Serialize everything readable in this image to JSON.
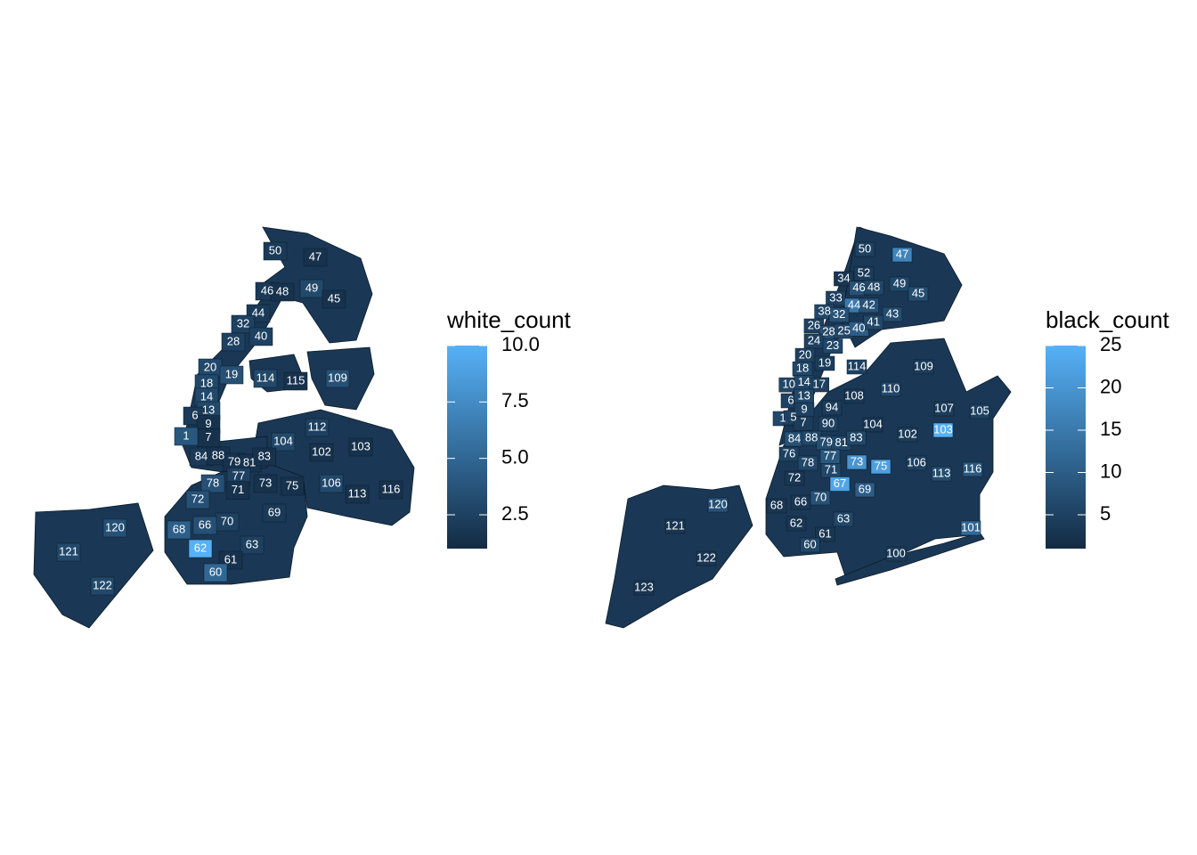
{
  "maps": [
    {
      "legend_title": "white_count",
      "range": [
        1,
        10
      ],
      "ticks": [
        {
          "value": 2.5,
          "label": "2.5"
        },
        {
          "value": 5.0,
          "label": "5.0"
        },
        {
          "value": 7.5,
          "label": "7.5"
        },
        {
          "value": 10.0,
          "label": "10.0"
        }
      ],
      "low_color": "#132B43",
      "high_color": "#56B1F7",
      "precincts": [
        {
          "id": "50",
          "value": 2
        },
        {
          "id": "47",
          "value": 1.5
        },
        {
          "id": "46",
          "value": 2
        },
        {
          "id": "48",
          "value": 1.5
        },
        {
          "id": "49",
          "value": 3
        },
        {
          "id": "45",
          "value": 1.5
        },
        {
          "id": "44",
          "value": 2
        },
        {
          "id": "32",
          "value": 2.5
        },
        {
          "id": "40",
          "value": 2.5
        },
        {
          "id": "28",
          "value": 2.5
        },
        {
          "id": "20",
          "value": 3
        },
        {
          "id": "19",
          "value": 3.5
        },
        {
          "id": "114",
          "value": 3
        },
        {
          "id": "115",
          "value": 1.5
        },
        {
          "id": "109",
          "value": 3.5
        },
        {
          "id": "18",
          "value": 3
        },
        {
          "id": "14",
          "value": 3
        },
        {
          "id": "13",
          "value": 3
        },
        {
          "id": "6",
          "value": 2
        },
        {
          "id": "9",
          "value": 1.5
        },
        {
          "id": "7",
          "value": 1.5
        },
        {
          "id": "1",
          "value": 4
        },
        {
          "id": "112",
          "value": 2.5
        },
        {
          "id": "104",
          "value": 3
        },
        {
          "id": "103",
          "value": 1.5
        },
        {
          "id": "102",
          "value": 1.5
        },
        {
          "id": "84",
          "value": 2
        },
        {
          "id": "88",
          "value": 1.5
        },
        {
          "id": "79",
          "value": 1.5
        },
        {
          "id": "81",
          "value": 1.5
        },
        {
          "id": "83",
          "value": 1.5
        },
        {
          "id": "78",
          "value": 3.5
        },
        {
          "id": "77",
          "value": 2.5
        },
        {
          "id": "71",
          "value": 1.5
        },
        {
          "id": "73",
          "value": 1.5
        },
        {
          "id": "75",
          "value": 1.5
        },
        {
          "id": "106",
          "value": 3
        },
        {
          "id": "113",
          "value": 1.5
        },
        {
          "id": "116",
          "value": 1.5
        },
        {
          "id": "72",
          "value": 3.5
        },
        {
          "id": "69",
          "value": 2
        },
        {
          "id": "70",
          "value": 2.5
        },
        {
          "id": "66",
          "value": 3.5
        },
        {
          "id": "68",
          "value": 4.5
        },
        {
          "id": "62",
          "value": 10
        },
        {
          "id": "63",
          "value": 2.5
        },
        {
          "id": "61",
          "value": 1.5
        },
        {
          "id": "60",
          "value": 5
        },
        {
          "id": "120",
          "value": 3.5
        },
        {
          "id": "121",
          "value": 3
        },
        {
          "id": "122",
          "value": 3
        }
      ]
    },
    {
      "legend_title": "black_count",
      "range": [
        1,
        25
      ],
      "ticks": [
        {
          "value": 5,
          "label": "5"
        },
        {
          "value": 10,
          "label": "10"
        },
        {
          "value": 15,
          "label": "15"
        },
        {
          "value": 20,
          "label": "20"
        },
        {
          "value": 25,
          "label": "25"
        }
      ],
      "low_color": "#132B43",
      "high_color": "#56B1F7",
      "precincts": [
        {
          "id": "50",
          "value": 5
        },
        {
          "id": "47",
          "value": 17
        },
        {
          "id": "34",
          "value": 3
        },
        {
          "id": "52",
          "value": 4
        },
        {
          "id": "46",
          "value": 8
        },
        {
          "id": "48",
          "value": 6
        },
        {
          "id": "49",
          "value": 6
        },
        {
          "id": "45",
          "value": 7
        },
        {
          "id": "33",
          "value": 5
        },
        {
          "id": "44",
          "value": 15
        },
        {
          "id": "42",
          "value": 8
        },
        {
          "id": "38",
          "value": 6
        },
        {
          "id": "32",
          "value": 8
        },
        {
          "id": "43",
          "value": 7
        },
        {
          "id": "26",
          "value": 5
        },
        {
          "id": "28",
          "value": 7
        },
        {
          "id": "25",
          "value": 6
        },
        {
          "id": "40",
          "value": 10
        },
        {
          "id": "41",
          "value": 6
        },
        {
          "id": "24",
          "value": 5
        },
        {
          "id": "23",
          "value": 6
        },
        {
          "id": "20",
          "value": 5
        },
        {
          "id": "19",
          "value": 4
        },
        {
          "id": "114",
          "value": 5
        },
        {
          "id": "109",
          "value": 4
        },
        {
          "id": "18",
          "value": 6
        },
        {
          "id": "10",
          "value": 6
        },
        {
          "id": "14",
          "value": 6
        },
        {
          "id": "17",
          "value": 5
        },
        {
          "id": "110",
          "value": 6
        },
        {
          "id": "108",
          "value": 3
        },
        {
          "id": "6",
          "value": 5
        },
        {
          "id": "13",
          "value": 6
        },
        {
          "id": "94",
          "value": 4
        },
        {
          "id": "107",
          "value": 4
        },
        {
          "id": "105",
          "value": 5
        },
        {
          "id": "1",
          "value": 6
        },
        {
          "id": "5",
          "value": 5
        },
        {
          "id": "9",
          "value": 5
        },
        {
          "id": "7",
          "value": 4
        },
        {
          "id": "90",
          "value": 5
        },
        {
          "id": "104",
          "value": 3
        },
        {
          "id": "103",
          "value": 25
        },
        {
          "id": "102",
          "value": 4
        },
        {
          "id": "84",
          "value": 8
        },
        {
          "id": "88",
          "value": 6
        },
        {
          "id": "79",
          "value": 7
        },
        {
          "id": "81",
          "value": 6
        },
        {
          "id": "83",
          "value": 6
        },
        {
          "id": "76",
          "value": 5
        },
        {
          "id": "78",
          "value": 6
        },
        {
          "id": "77",
          "value": 9
        },
        {
          "id": "71",
          "value": 6
        },
        {
          "id": "73",
          "value": 20
        },
        {
          "id": "75",
          "value": 22
        },
        {
          "id": "106",
          "value": 5
        },
        {
          "id": "113",
          "value": 7
        },
        {
          "id": "116",
          "value": 9
        },
        {
          "id": "72",
          "value": 3
        },
        {
          "id": "67",
          "value": 23
        },
        {
          "id": "69",
          "value": 10
        },
        {
          "id": "70",
          "value": 8
        },
        {
          "id": "66",
          "value": 3
        },
        {
          "id": "68",
          "value": 3
        },
        {
          "id": "62",
          "value": 3
        },
        {
          "id": "63",
          "value": 6
        },
        {
          "id": "61",
          "value": 3
        },
        {
          "id": "60",
          "value": 6
        },
        {
          "id": "101",
          "value": 12
        },
        {
          "id": "100",
          "value": 4
        },
        {
          "id": "120",
          "value": 8
        },
        {
          "id": "121",
          "value": 3
        },
        {
          "id": "122",
          "value": 3
        },
        {
          "id": "123",
          "value": 3
        }
      ]
    }
  ]
}
